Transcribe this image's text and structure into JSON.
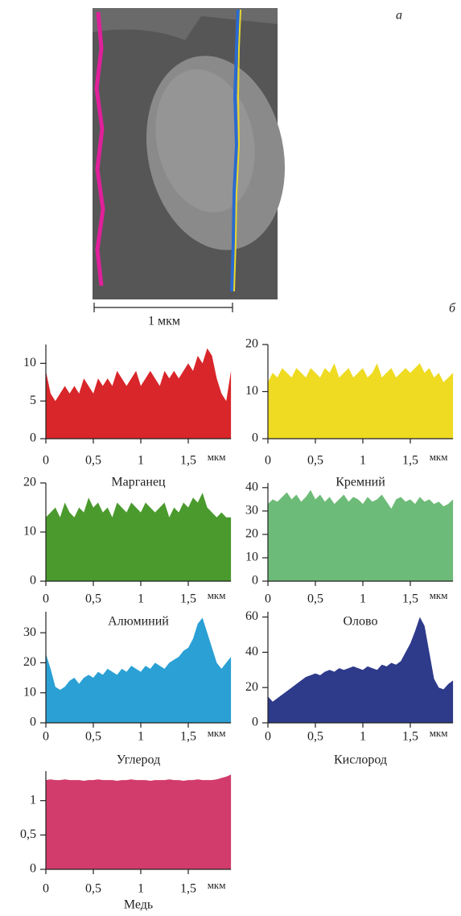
{
  "figure": {
    "panel_a_label": "а",
    "scale_bar": "1 мкм",
    "panel_b_label": "б"
  },
  "chart_data": [
    {
      "type": "area",
      "title": "Марганец",
      "xlabel": "мкм",
      "color": "#d8262a",
      "x": [
        0,
        0.05,
        0.1,
        0.15,
        0.2,
        0.25,
        0.3,
        0.35,
        0.4,
        0.45,
        0.5,
        0.55,
        0.6,
        0.65,
        0.7,
        0.75,
        0.8,
        0.85,
        0.9,
        0.95,
        1,
        1.05,
        1.1,
        1.15,
        1.2,
        1.25,
        1.3,
        1.35,
        1.4,
        1.45,
        1.5,
        1.55,
        1.6,
        1.65,
        1.7,
        1.75,
        1.8,
        1.85,
        1.9,
        1.95
      ],
      "values": [
        9,
        6,
        5,
        6,
        7,
        6,
        7,
        6,
        8,
        7,
        6,
        8,
        7,
        8,
        7,
        9,
        8,
        7,
        8,
        9,
        7,
        8,
        9,
        8,
        7,
        9,
        8,
        9,
        8,
        9,
        10,
        9,
        11,
        10,
        12,
        11,
        8,
        6,
        5,
        9
      ],
      "xlim": [
        0,
        1.95
      ],
      "xticks": [
        0,
        {
          "value": 0.5,
          "label": "0,5"
        },
        1,
        {
          "value": 1.5,
          "label": "1,5"
        }
      ],
      "ylim": [
        0,
        12.5
      ],
      "yticks": [
        0,
        5,
        10
      ]
    },
    {
      "type": "area",
      "title": "Кремний",
      "xlabel": "мкм",
      "color": "#eedb22",
      "x": [
        0,
        0.05,
        0.1,
        0.15,
        0.2,
        0.25,
        0.3,
        0.35,
        0.4,
        0.45,
        0.5,
        0.55,
        0.6,
        0.65,
        0.7,
        0.75,
        0.8,
        0.85,
        0.9,
        0.95,
        1,
        1.05,
        1.1,
        1.15,
        1.2,
        1.25,
        1.3,
        1.35,
        1.4,
        1.45,
        1.5,
        1.55,
        1.6,
        1.65,
        1.7,
        1.75,
        1.8,
        1.85,
        1.9,
        1.95
      ],
      "values": [
        12,
        14,
        13,
        15,
        14,
        13,
        15,
        14,
        13,
        15,
        14,
        13,
        15,
        14,
        16,
        13,
        14,
        15,
        13,
        14,
        15,
        13,
        14,
        16,
        13,
        14,
        15,
        13,
        14,
        15,
        14,
        15,
        16,
        14,
        15,
        13,
        14,
        12,
        13,
        14
      ],
      "xlim": [
        0,
        1.95
      ],
      "xticks": [
        0,
        {
          "value": 0.5,
          "label": "0,5"
        },
        1,
        {
          "value": 1.5,
          "label": "1,5"
        }
      ],
      "ylim": [
        0,
        20
      ],
      "yticks": [
        0,
        10,
        20
      ]
    },
    {
      "type": "area",
      "title": "Алюминий",
      "xlabel": "мкм",
      "color": "#4a9a2e",
      "x": [
        0,
        0.05,
        0.1,
        0.15,
        0.2,
        0.25,
        0.3,
        0.35,
        0.4,
        0.45,
        0.5,
        0.55,
        0.6,
        0.65,
        0.7,
        0.75,
        0.8,
        0.85,
        0.9,
        0.95,
        1,
        1.05,
        1.1,
        1.15,
        1.2,
        1.25,
        1.3,
        1.35,
        1.4,
        1.45,
        1.5,
        1.55,
        1.6,
        1.65,
        1.7,
        1.75,
        1.8,
        1.85,
        1.9,
        1.95
      ],
      "values": [
        13,
        14,
        15,
        13,
        16,
        14,
        13,
        15,
        14,
        17,
        15,
        16,
        14,
        15,
        13,
        16,
        15,
        14,
        16,
        15,
        14,
        16,
        15,
        14,
        15,
        16,
        13,
        15,
        14,
        16,
        15,
        17,
        16,
        18,
        15,
        14,
        13,
        14,
        13,
        13
      ],
      "xlim": [
        0,
        1.95
      ],
      "xticks": [
        0,
        {
          "value": 0.5,
          "label": "0,5"
        },
        1,
        {
          "value": 1.5,
          "label": "1,5"
        }
      ],
      "ylim": [
        0,
        20
      ],
      "yticks": [
        0,
        10,
        20
      ]
    },
    {
      "type": "area",
      "title": "Олово",
      "xlabel": "мкм",
      "color": "#6dbb78",
      "x": [
        0,
        0.05,
        0.1,
        0.15,
        0.2,
        0.25,
        0.3,
        0.35,
        0.4,
        0.45,
        0.5,
        0.55,
        0.6,
        0.65,
        0.7,
        0.75,
        0.8,
        0.85,
        0.9,
        0.95,
        1,
        1.05,
        1.1,
        1.15,
        1.2,
        1.25,
        1.3,
        1.35,
        1.4,
        1.45,
        1.5,
        1.55,
        1.6,
        1.65,
        1.7,
        1.75,
        1.8,
        1.85,
        1.9,
        1.95
      ],
      "values": [
        33,
        35,
        34,
        36,
        38,
        35,
        37,
        34,
        36,
        39,
        35,
        37,
        34,
        36,
        33,
        35,
        37,
        34,
        36,
        35,
        33,
        36,
        34,
        35,
        37,
        34,
        31,
        35,
        36,
        34,
        35,
        33,
        36,
        34,
        35,
        33,
        34,
        32,
        33,
        35
      ],
      "xlim": [
        0,
        1.95
      ],
      "xticks": [
        0,
        {
          "value": 0.5,
          "label": "0,5"
        },
        1,
        {
          "value": 1.5,
          "label": "1,5"
        }
      ],
      "ylim": [
        0,
        42
      ],
      "yticks": [
        0,
        10,
        20,
        30,
        40
      ]
    },
    {
      "type": "area",
      "title": "Углерод",
      "xlabel": "мкм",
      "color": "#2aa0d4",
      "x": [
        0,
        0.05,
        0.1,
        0.15,
        0.2,
        0.25,
        0.3,
        0.35,
        0.4,
        0.45,
        0.5,
        0.55,
        0.6,
        0.65,
        0.7,
        0.75,
        0.8,
        0.85,
        0.9,
        0.95,
        1,
        1.05,
        1.1,
        1.15,
        1.2,
        1.25,
        1.3,
        1.35,
        1.4,
        1.45,
        1.5,
        1.55,
        1.6,
        1.65,
        1.7,
        1.75,
        1.8,
        1.85,
        1.9,
        1.95
      ],
      "values": [
        23,
        18,
        12,
        11,
        12,
        14,
        15,
        13,
        15,
        16,
        15,
        17,
        16,
        18,
        17,
        16,
        18,
        17,
        19,
        18,
        17,
        19,
        18,
        20,
        19,
        18,
        20,
        21,
        22,
        24,
        25,
        28,
        33,
        35,
        30,
        25,
        20,
        18,
        20,
        22
      ],
      "xlim": [
        0,
        1.95
      ],
      "xticks": [
        0,
        {
          "value": 0.5,
          "label": "0,5"
        },
        1,
        {
          "value": 1.5,
          "label": "1,5"
        }
      ],
      "ylim": [
        0,
        37
      ],
      "yticks": [
        0,
        10,
        20,
        30
      ]
    },
    {
      "type": "area",
      "title": "Кислород",
      "xlabel": "мкм",
      "color": "#2e3a8a",
      "x": [
        0,
        0.05,
        0.1,
        0.15,
        0.2,
        0.25,
        0.3,
        0.35,
        0.4,
        0.45,
        0.5,
        0.55,
        0.6,
        0.65,
        0.7,
        0.75,
        0.8,
        0.85,
        0.9,
        0.95,
        1,
        1.05,
        1.1,
        1.15,
        1.2,
        1.25,
        1.3,
        1.35,
        1.4,
        1.45,
        1.5,
        1.55,
        1.6,
        1.65,
        1.7,
        1.75,
        1.8,
        1.85,
        1.9,
        1.95
      ],
      "values": [
        15,
        12,
        14,
        16,
        18,
        20,
        22,
        24,
        26,
        27,
        28,
        27,
        29,
        30,
        29,
        31,
        30,
        31,
        32,
        31,
        30,
        32,
        31,
        30,
        33,
        32,
        34,
        33,
        35,
        40,
        45,
        52,
        60,
        55,
        40,
        25,
        20,
        19,
        22,
        24
      ],
      "xlim": [
        0,
        1.95
      ],
      "xticks": [
        0,
        {
          "value": 0.5,
          "label": "0,5"
        },
        1,
        {
          "value": 1.5,
          "label": "1,5"
        }
      ],
      "ylim": [
        0,
        63
      ],
      "yticks": [
        0,
        20,
        40,
        60
      ]
    },
    {
      "type": "area",
      "title": "Медь",
      "xlabel": "мкм",
      "color": "#d23c6c",
      "x": [
        0,
        0.05,
        0.1,
        0.15,
        0.2,
        0.25,
        0.3,
        0.35,
        0.4,
        0.45,
        0.5,
        0.55,
        0.6,
        0.65,
        0.7,
        0.75,
        0.8,
        0.85,
        0.9,
        0.95,
        1,
        1.05,
        1.1,
        1.15,
        1.2,
        1.25,
        1.3,
        1.35,
        1.4,
        1.45,
        1.5,
        1.55,
        1.6,
        1.65,
        1.7,
        1.75,
        1.8,
        1.85,
        1.9,
        1.95
      ],
      "values": [
        1.3,
        1.31,
        1.3,
        1.3,
        1.31,
        1.3,
        1.3,
        1.3,
        1.29,
        1.3,
        1.3,
        1.31,
        1.3,
        1.3,
        1.3,
        1.29,
        1.3,
        1.3,
        1.31,
        1.3,
        1.3,
        1.3,
        1.29,
        1.3,
        1.3,
        1.3,
        1.31,
        1.3,
        1.3,
        1.29,
        1.3,
        1.3,
        1.31,
        1.3,
        1.3,
        1.3,
        1.31,
        1.33,
        1.35,
        1.38
      ],
      "xlim": [
        0,
        1.95
      ],
      "xticks": [
        0,
        {
          "value": 0.5,
          "label": "0,5"
        },
        1,
        {
          "value": 1.5,
          "label": "1,5"
        }
      ],
      "ylim": [
        0,
        1.43
      ],
      "yticks": [
        0,
        {
          "value": 0.5,
          "label": "0,5"
        },
        1
      ]
    }
  ]
}
